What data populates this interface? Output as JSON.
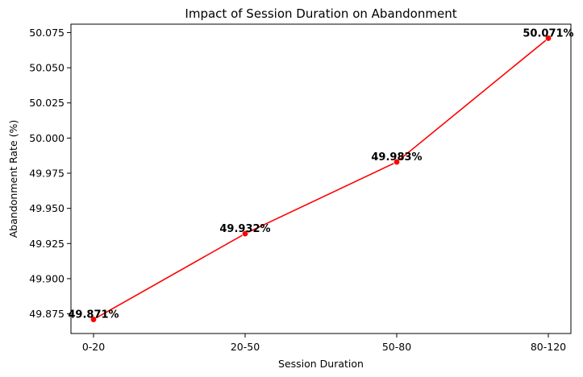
{
  "chart_data": {
    "type": "line",
    "title": "Impact of Session Duration on Abandonment",
    "xlabel": "Session Duration",
    "ylabel": "Abandonment Rate (%)",
    "categories": [
      "0-20",
      "20-50",
      "50-80",
      "80-120"
    ],
    "series": [
      {
        "values": [
          49.871,
          49.932,
          49.983,
          50.071
        ],
        "labels": [
          "49.871%",
          "49.932%",
          "49.983%",
          "50.071%"
        ],
        "color": "#ff0000",
        "marker": "circle"
      }
    ],
    "yticks": [
      49.875,
      49.9,
      49.925,
      49.95,
      49.975,
      50.0,
      50.025,
      50.05,
      50.075
    ],
    "ytick_labels": [
      "49.875",
      "49.900",
      "49.925",
      "49.950",
      "49.975",
      "50.000",
      "50.025",
      "50.050",
      "50.075"
    ],
    "ylim": [
      49.861,
      50.081
    ],
    "grid": false,
    "legend": "none"
  }
}
